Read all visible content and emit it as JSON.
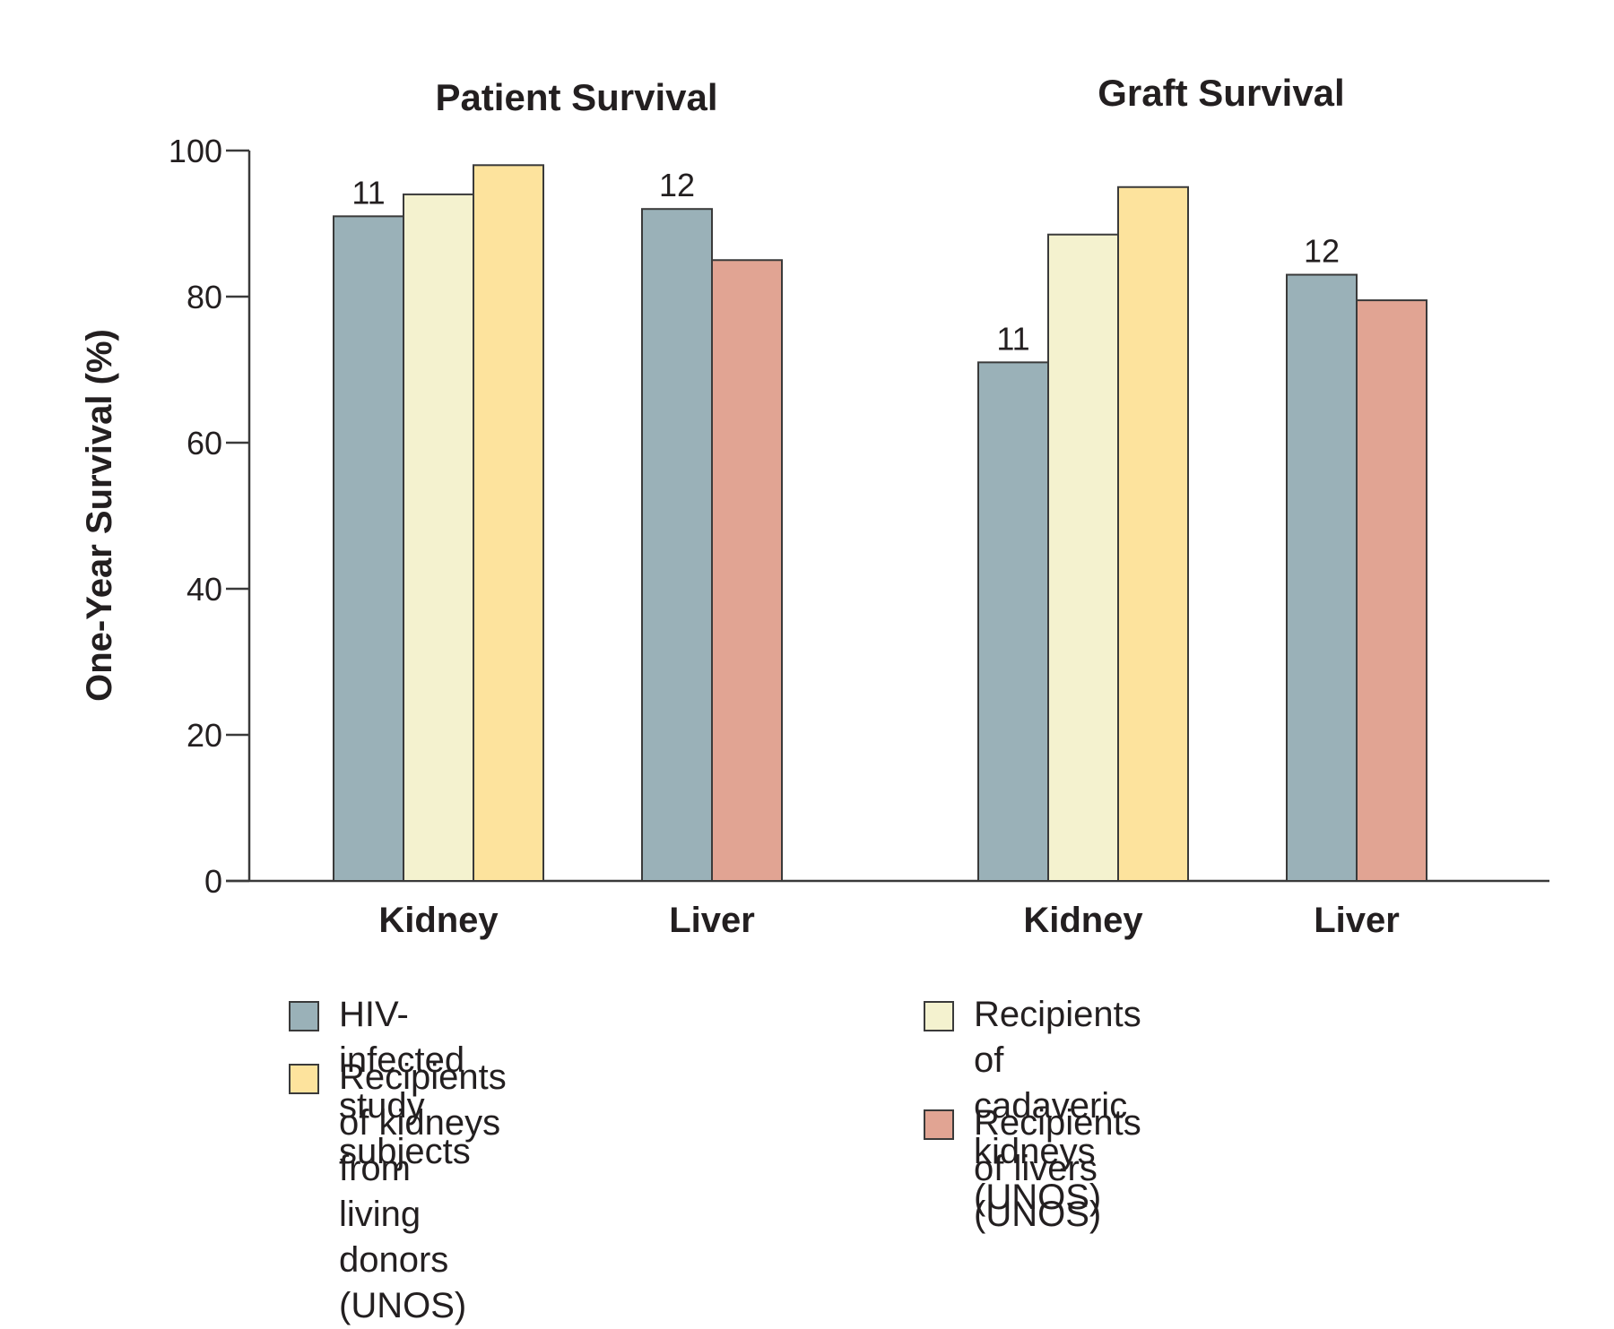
{
  "chart_data": {
    "type": "bar",
    "ylabel": "One-Year Survival (%)",
    "ylim": [
      0,
      100
    ],
    "yticks": [
      0,
      20,
      40,
      60,
      80,
      100
    ],
    "grid": false,
    "legend_position": "bottom",
    "series": [
      {
        "name": "HIV-infected study subjects",
        "color": "#9ab1b8"
      },
      {
        "name": "Recipients of cadaveric kidneys\n(UNOS)",
        "color": "#f4f2cf"
      },
      {
        "name": "Recipients of kidneys from\nliving donors (UNOS)",
        "color": "#fde39d"
      },
      {
        "name": "Recipients of livers (UNOS)",
        "color": "#e1a493"
      }
    ],
    "panels": [
      {
        "title": "Patient Survival",
        "groups": [
          {
            "category": "Kidney",
            "bars": [
              {
                "series": 0,
                "value": 91,
                "label": "11"
              },
              {
                "series": 1,
                "value": 94,
                "label": ""
              },
              {
                "series": 2,
                "value": 98,
                "label": ""
              }
            ]
          },
          {
            "category": "Liver",
            "bars": [
              {
                "series": 0,
                "value": 92,
                "label": "12"
              },
              {
                "series": 3,
                "value": 85,
                "label": ""
              }
            ]
          }
        ]
      },
      {
        "title": "Graft Survival",
        "groups": [
          {
            "category": "Kidney",
            "bars": [
              {
                "series": 0,
                "value": 71,
                "label": "11"
              },
              {
                "series": 1,
                "value": 88.5,
                "label": ""
              },
              {
                "series": 2,
                "value": 95,
                "label": ""
              }
            ]
          },
          {
            "category": "Liver",
            "bars": [
              {
                "series": 0,
                "value": 83,
                "label": "12"
              },
              {
                "series": 3,
                "value": 79.5,
                "label": ""
              }
            ]
          }
        ]
      }
    ],
    "legend_order": [
      0,
      1,
      2,
      3
    ]
  }
}
